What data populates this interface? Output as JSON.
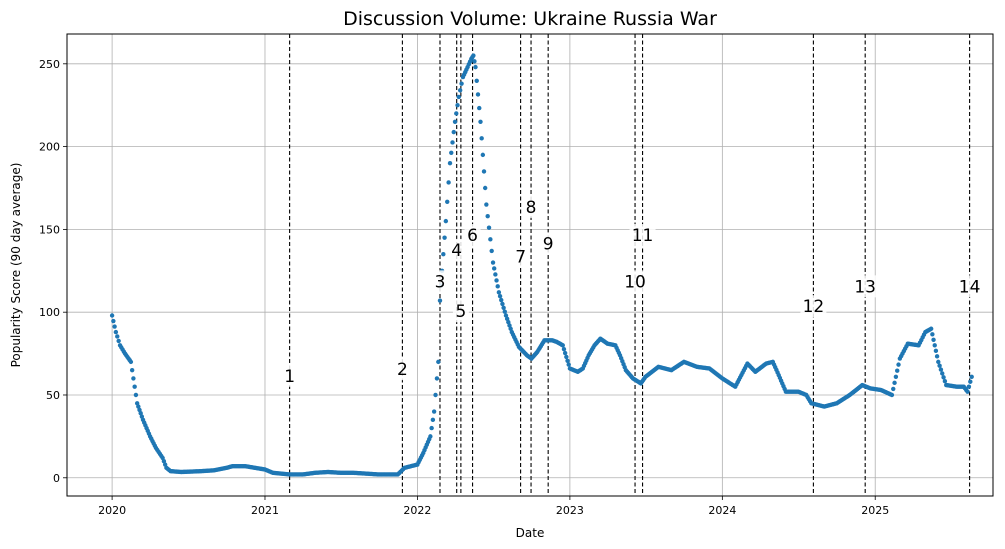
{
  "chart_data": {
    "type": "scatter",
    "title": "Discussion Volume: Ukraine Russia War",
    "xlabel": "Date",
    "ylabel": "Popularity Score (90 day average)",
    "xlim": [
      "2019-09-15",
      "2025-10-10"
    ],
    "ylim": [
      -11,
      268
    ],
    "x_ticks": [
      {
        "date": "2020-01-01",
        "label": "2020"
      },
      {
        "date": "2021-01-01",
        "label": "2021"
      },
      {
        "date": "2022-01-01",
        "label": "2022"
      },
      {
        "date": "2023-01-01",
        "label": "2023"
      },
      {
        "date": "2024-01-01",
        "label": "2024"
      },
      {
        "date": "2025-01-01",
        "label": "2025"
      }
    ],
    "y_ticks": [
      0,
      50,
      100,
      150,
      200,
      250
    ],
    "grid": true,
    "marker_color": "#1f77b4",
    "series": [
      {
        "points": [
          [
            "2020-01-01",
            98
          ],
          [
            "2020-01-10",
            88
          ],
          [
            "2020-01-20",
            80
          ],
          [
            "2020-02-01",
            75
          ],
          [
            "2020-02-15",
            70
          ],
          [
            "2020-03-01",
            45
          ],
          [
            "2020-03-15",
            35
          ],
          [
            "2020-04-01",
            25
          ],
          [
            "2020-04-15",
            18
          ],
          [
            "2020-05-01",
            12
          ],
          [
            "2020-05-10",
            6
          ],
          [
            "2020-05-20",
            4
          ],
          [
            "2020-06-15",
            3.5
          ],
          [
            "2020-08-01",
            4
          ],
          [
            "2020-09-01",
            4.5
          ],
          [
            "2020-10-01",
            6
          ],
          [
            "2020-10-15",
            7
          ],
          [
            "2020-11-15",
            7
          ],
          [
            "2021-01-01",
            5
          ],
          [
            "2021-01-20",
            3
          ],
          [
            "2021-03-01",
            2
          ],
          [
            "2021-04-01",
            2
          ],
          [
            "2021-05-01",
            3
          ],
          [
            "2021-06-01",
            3.5
          ],
          [
            "2021-07-01",
            3
          ],
          [
            "2021-08-01",
            3
          ],
          [
            "2021-09-01",
            2.5
          ],
          [
            "2021-10-01",
            2
          ],
          [
            "2021-11-15",
            2
          ],
          [
            "2021-12-01",
            6
          ],
          [
            "2022-01-01",
            8
          ],
          [
            "2022-01-15",
            15
          ],
          [
            "2022-02-01",
            25
          ],
          [
            "2022-02-10",
            40
          ],
          [
            "2022-02-20",
            70
          ],
          [
            "2022-02-24",
            107
          ],
          [
            "2022-03-01",
            125
          ],
          [
            "2022-03-10",
            155
          ],
          [
            "2022-03-20",
            190
          ],
          [
            "2022-04-01",
            215
          ],
          [
            "2022-04-10",
            230
          ],
          [
            "2022-04-20",
            242
          ],
          [
            "2022-05-01",
            248
          ],
          [
            "2022-05-10",
            253
          ],
          [
            "2022-05-15",
            255
          ],
          [
            "2022-05-20",
            248
          ],
          [
            "2022-06-01",
            215
          ],
          [
            "2022-06-15",
            165
          ],
          [
            "2022-07-01",
            130
          ],
          [
            "2022-07-15",
            112
          ],
          [
            "2022-08-01",
            98
          ],
          [
            "2022-08-15",
            88
          ],
          [
            "2022-09-01",
            79
          ],
          [
            "2022-09-20",
            74
          ],
          [
            "2022-10-01",
            72
          ],
          [
            "2022-10-15",
            76
          ],
          [
            "2022-11-01",
            83
          ],
          [
            "2022-11-20",
            83
          ],
          [
            "2022-12-01",
            82
          ],
          [
            "2022-12-15",
            80
          ],
          [
            "2023-01-01",
            66
          ],
          [
            "2023-01-20",
            64
          ],
          [
            "2023-02-01",
            66
          ],
          [
            "2023-02-15",
            74
          ],
          [
            "2023-03-01",
            80
          ],
          [
            "2023-03-15",
            84
          ],
          [
            "2023-04-01",
            81
          ],
          [
            "2023-04-20",
            80
          ],
          [
            "2023-05-01",
            74
          ],
          [
            "2023-05-15",
            65
          ],
          [
            "2023-06-01",
            60
          ],
          [
            "2023-06-20",
            57
          ],
          [
            "2023-07-01",
            61
          ],
          [
            "2023-08-01",
            67
          ],
          [
            "2023-09-01",
            65
          ],
          [
            "2023-10-01",
            70
          ],
          [
            "2023-11-01",
            67
          ],
          [
            "2023-12-01",
            66
          ],
          [
            "2024-01-01",
            60
          ],
          [
            "2024-02-01",
            55
          ],
          [
            "2024-03-01",
            69
          ],
          [
            "2024-03-20",
            64
          ],
          [
            "2024-04-15",
            69
          ],
          [
            "2024-05-01",
            70
          ],
          [
            "2024-05-15",
            62
          ],
          [
            "2024-06-01",
            52
          ],
          [
            "2024-07-01",
            52
          ],
          [
            "2024-07-20",
            50
          ],
          [
            "2024-08-01",
            45
          ],
          [
            "2024-09-01",
            43
          ],
          [
            "2024-10-01",
            45
          ],
          [
            "2024-11-01",
            50
          ],
          [
            "2024-12-01",
            56
          ],
          [
            "2024-12-20",
            54
          ],
          [
            "2025-01-15",
            53
          ],
          [
            "2025-02-10",
            50
          ],
          [
            "2025-03-01",
            72
          ],
          [
            "2025-03-20",
            81
          ],
          [
            "2025-04-15",
            80
          ],
          [
            "2025-05-01",
            88
          ],
          [
            "2025-05-15",
            90
          ],
          [
            "2025-06-01",
            70
          ],
          [
            "2025-06-20",
            56
          ],
          [
            "2025-07-15",
            55
          ],
          [
            "2025-08-01",
            55
          ],
          [
            "2025-08-10",
            52
          ],
          [
            "2025-08-20",
            61
          ]
        ]
      }
    ],
    "events": [
      {
        "label": "1",
        "date": "2021-03-01",
        "label_y": 61
      },
      {
        "label": "2",
        "date": "2021-11-26",
        "label_y": 65
      },
      {
        "label": "3",
        "date": "2022-02-24",
        "label_y": 118
      },
      {
        "label": "4",
        "date": "2022-04-05",
        "label_y": 137
      },
      {
        "label": "5",
        "date": "2022-04-15",
        "label_y": 100
      },
      {
        "label": "6",
        "date": "2022-05-13",
        "label_y": 146
      },
      {
        "label": "7",
        "date": "2022-09-05",
        "label_y": 133
      },
      {
        "label": "8",
        "date": "2022-09-30",
        "label_y": 163
      },
      {
        "label": "9",
        "date": "2022-11-10",
        "label_y": 141
      },
      {
        "label": "10",
        "date": "2023-06-06",
        "label_y": 118
      },
      {
        "label": "11",
        "date": "2023-06-24",
        "label_y": 146
      },
      {
        "label": "12",
        "date": "2024-08-06",
        "label_y": 103
      },
      {
        "label": "13",
        "date": "2024-12-08",
        "label_y": 115
      },
      {
        "label": "14",
        "date": "2025-08-15",
        "label_y": 115
      }
    ]
  }
}
